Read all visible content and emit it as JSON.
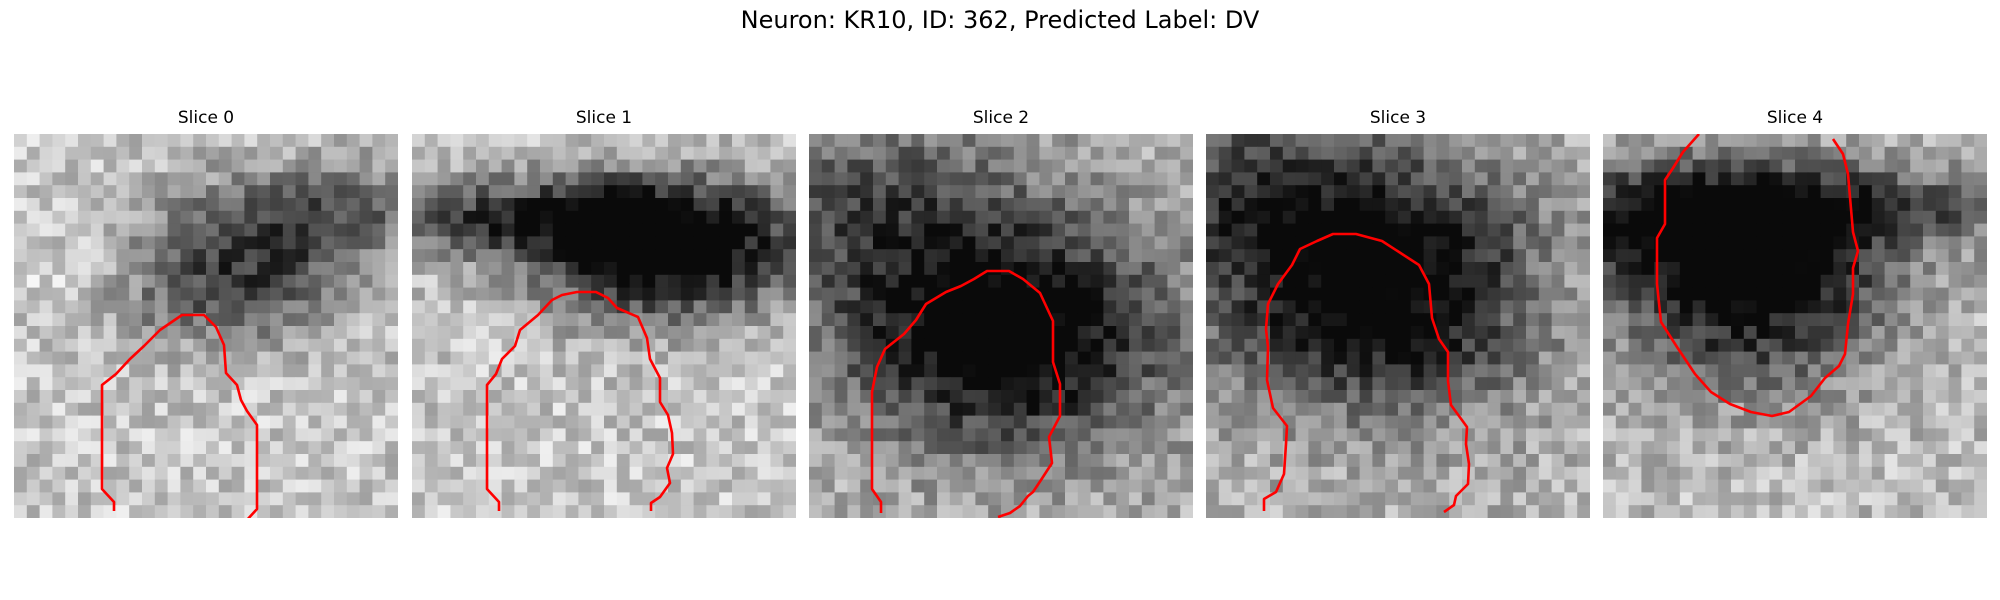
{
  "figure": {
    "title": "Neuron: KR10, ID: 362, Predicted Label: DV",
    "contour_color": "#ff0000"
  },
  "slices": [
    {
      "title": "Slice 0"
    },
    {
      "title": "Slice 1"
    },
    {
      "title": "Slice 2"
    },
    {
      "title": "Slice 3"
    },
    {
      "title": "Slice 4"
    }
  ]
}
